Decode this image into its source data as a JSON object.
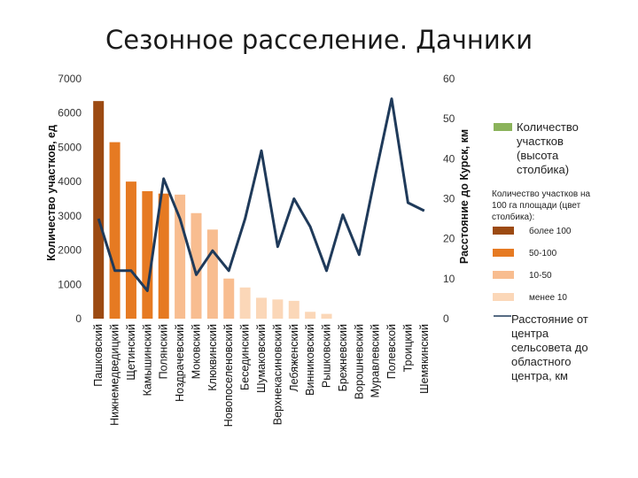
{
  "title": "Сезонное расселение. Дачники",
  "chart_data": {
    "type": "bar+line",
    "title": "Сезонное расселение. Дачники",
    "categories": [
      "Пашковский",
      "Нижнемедведицкий",
      "Щетинский",
      "Камышинский",
      "Полянский",
      "Ноздрачевский",
      "Моковский",
      "Клюквинский",
      "Новопоселеновский",
      "Бесединский",
      "Шумаковский",
      "Верхнекасиновский",
      "Лебяженский",
      "Винниковский",
      "Рышковский",
      "Брежневский",
      "Ворошневский",
      "Муравлевский",
      "Полевской",
      "Троицкий",
      "Шемякинский"
    ],
    "bars": {
      "name": "Количество участков (высота столбика)",
      "values": [
        6350,
        5150,
        4000,
        3720,
        3650,
        3620,
        3080,
        2600,
        1170,
        910,
        610,
        560,
        520,
        200,
        140,
        0,
        0,
        0,
        0,
        0,
        0
      ],
      "color_classes": [
        "более 100",
        "50-100",
        "50-100",
        "50-100",
        "50-100",
        "10-50",
        "10-50",
        "10-50",
        "10-50",
        "менее 10",
        "менее 10",
        "менее 10",
        "менее 10",
        "менее 10",
        "менее 10",
        "менее 10",
        "менее 10",
        "менее 10",
        "менее 10",
        "менее 10",
        "менее 10"
      ]
    },
    "line": {
      "name": "Расстояние от центра сельсовета до областного центра, км",
      "values": [
        25,
        12,
        12,
        7,
        35,
        25,
        11,
        17,
        12,
        25,
        42,
        18,
        30,
        23,
        12,
        26,
        16,
        36,
        55,
        29,
        27
      ],
      "color": "#1f3a5a"
    },
    "y_left": {
      "label": "Количество участков, ед",
      "min": 0,
      "max": 7000,
      "ticks": [
        0,
        1000,
        2000,
        3000,
        4000,
        5000,
        6000,
        7000
      ]
    },
    "y_right": {
      "label": "Расстояние до Курск, км",
      "min": 0,
      "max": 60,
      "ticks": [
        0,
        10,
        20,
        30,
        40,
        50,
        60
      ]
    },
    "legend": {
      "placement": "right",
      "bar_entry": "Количество участков (высота столбика)",
      "bar_entry_color": "#8bb35b",
      "classes_title": "Количество участков на 100 га площади (цвет столбика):",
      "classes": [
        {
          "label": "более 100",
          "color": "#9c4a12"
        },
        {
          "label": "50-100",
          "color": "#e67a22"
        },
        {
          "label": "10-50",
          "color": "#f8bd90"
        },
        {
          "label": "менее 10",
          "color": "#fbd7b8"
        }
      ],
      "line_entry": "Расстояние от центра сельсовета до областного центра, км"
    },
    "grid": false
  }
}
